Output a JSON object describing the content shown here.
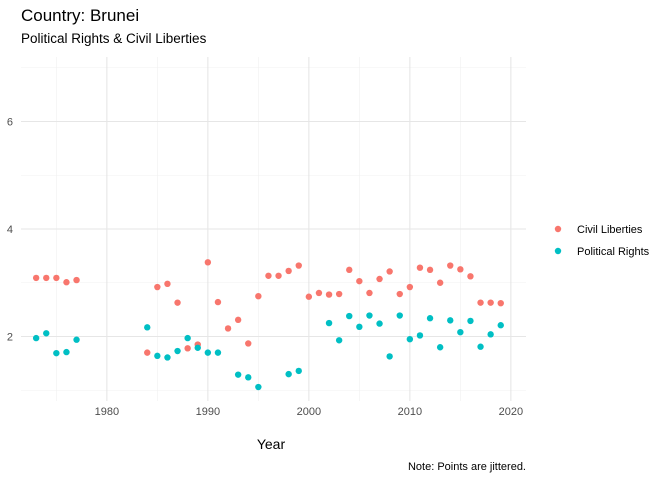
{
  "chart_data": {
    "type": "scatter",
    "title": "Country: Brunei",
    "subtitle": "Political Rights & Civil Liberties",
    "xlabel": "Year",
    "ylabel": "",
    "caption": "Note: Points are jittered.",
    "xlim": [
      1971.5,
      2021.5
    ],
    "ylim": [
      0.8,
      7.2
    ],
    "x_ticks": [
      1980,
      1990,
      2000,
      2010,
      2020
    ],
    "y_ticks": [
      2,
      4,
      6
    ],
    "grid": true,
    "legend_position": "right",
    "series": [
      {
        "name": "Civil Liberties",
        "color": "#F8766D",
        "points": [
          [
            1973,
            3.09
          ],
          [
            1974,
            3.09
          ],
          [
            1975,
            3.09
          ],
          [
            1976,
            3.01
          ],
          [
            1977,
            3.05
          ],
          [
            1984,
            1.7
          ],
          [
            1985,
            2.92
          ],
          [
            1986,
            2.98
          ],
          [
            1987,
            2.63
          ],
          [
            1988,
            1.78
          ],
          [
            1989,
            1.85
          ],
          [
            1990,
            3.38
          ],
          [
            1991,
            2.64
          ],
          [
            1992,
            2.15
          ],
          [
            1993,
            2.31
          ],
          [
            1994,
            1.87
          ],
          [
            1995,
            2.75
          ],
          [
            1996,
            3.13
          ],
          [
            1997,
            3.13
          ],
          [
            1998,
            3.22
          ],
          [
            1999,
            3.32
          ],
          [
            2000,
            2.74
          ],
          [
            2001,
            2.81
          ],
          [
            2002,
            2.78
          ],
          [
            2003,
            2.79
          ],
          [
            2004,
            3.24
          ],
          [
            2005,
            3.03
          ],
          [
            2006,
            2.81
          ],
          [
            2007,
            3.07
          ],
          [
            2008,
            3.21
          ],
          [
            2009,
            2.79
          ],
          [
            2010,
            2.92
          ],
          [
            2011,
            3.28
          ],
          [
            2012,
            3.24
          ],
          [
            2013,
            3.0
          ],
          [
            2014,
            3.32
          ],
          [
            2015,
            3.25
          ],
          [
            2016,
            3.12
          ],
          [
            2017,
            2.63
          ],
          [
            2018,
            2.63
          ],
          [
            2019,
            2.62
          ]
        ]
      },
      {
        "name": "Political Rights",
        "color": "#00BFC4",
        "points": [
          [
            1973,
            1.97
          ],
          [
            1974,
            2.06
          ],
          [
            1975,
            1.69
          ],
          [
            1976,
            1.71
          ],
          [
            1977,
            1.94
          ],
          [
            1984,
            2.17
          ],
          [
            1985,
            1.64
          ],
          [
            1986,
            1.61
          ],
          [
            1987,
            1.73
          ],
          [
            1988,
            1.97
          ],
          [
            1989,
            1.79
          ],
          [
            1990,
            1.7
          ],
          [
            1991,
            1.7
          ],
          [
            1993,
            1.29
          ],
          [
            1994,
            1.24
          ],
          [
            1995,
            1.06
          ],
          [
            1998,
            1.3
          ],
          [
            1999,
            1.36
          ],
          [
            2002,
            2.25
          ],
          [
            2003,
            1.93
          ],
          [
            2004,
            2.38
          ],
          [
            2005,
            2.18
          ],
          [
            2006,
            2.39
          ],
          [
            2007,
            2.24
          ],
          [
            2008,
            1.63
          ],
          [
            2009,
            2.39
          ],
          [
            2010,
            1.95
          ],
          [
            2011,
            2.02
          ],
          [
            2012,
            2.34
          ],
          [
            2013,
            1.8
          ],
          [
            2014,
            2.3
          ],
          [
            2015,
            2.08
          ],
          [
            2016,
            2.29
          ],
          [
            2017,
            1.81
          ],
          [
            2018,
            2.04
          ],
          [
            2019,
            2.21
          ]
        ]
      }
    ]
  }
}
